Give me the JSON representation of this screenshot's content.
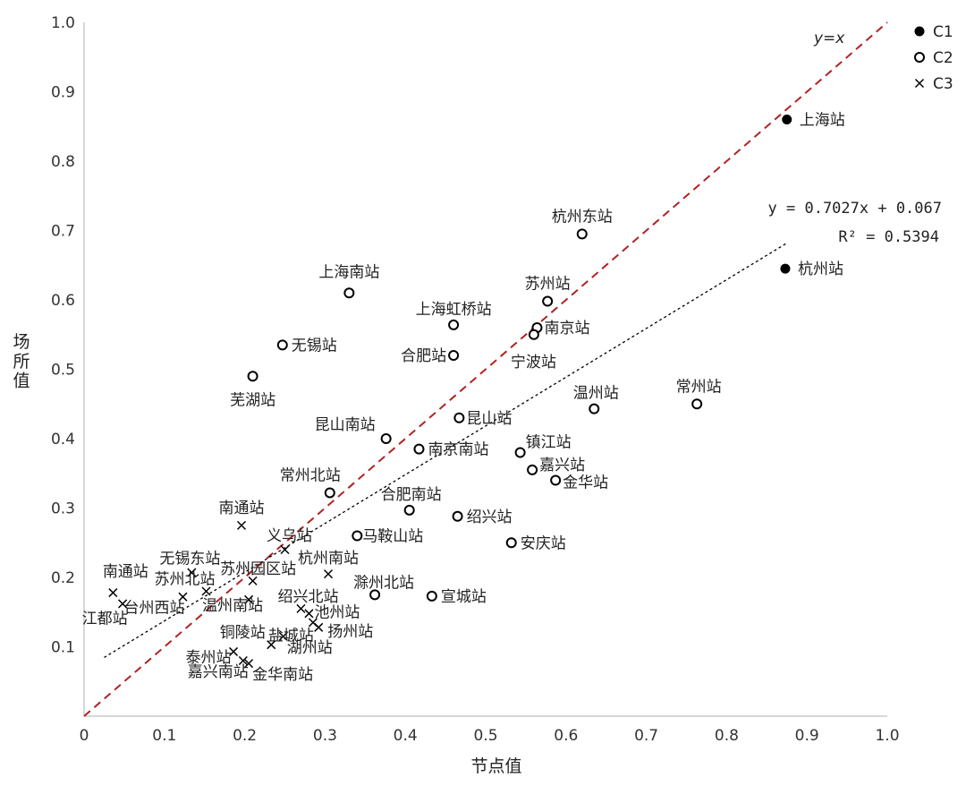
{
  "chart_data": {
    "type": "scatter",
    "title": "",
    "xlabel": "节点值",
    "ylabel": "场所值",
    "xlim": [
      0,
      1.0
    ],
    "ylim": [
      0,
      1.0
    ],
    "x_ticks": [
      "0",
      "0.1",
      "0.2",
      "0.3",
      "0.4",
      "0.5",
      "0.6",
      "0.7",
      "0.8",
      "0.9",
      "1.0"
    ],
    "y_ticks": [
      "0.1",
      "0.2",
      "0.3",
      "0.4",
      "0.5",
      "0.6",
      "0.7",
      "0.8",
      "0.9",
      "1.0"
    ],
    "grid": false,
    "legend_position": "top-right",
    "series": [
      {
        "name": "C1",
        "marker": "filled-circle",
        "points": [
          {
            "label": "上海站",
            "x": 0.875,
            "y": 0.86
          },
          {
            "label": "杭州站",
            "x": 0.873,
            "y": 0.645
          }
        ]
      },
      {
        "name": "C2",
        "marker": "open-circle",
        "points": [
          {
            "label": "杭州东站",
            "x": 0.62,
            "y": 0.695
          },
          {
            "label": "苏州站",
            "x": 0.577,
            "y": 0.598
          },
          {
            "label": "南京站",
            "x": 0.564,
            "y": 0.56
          },
          {
            "label": "宁波站",
            "x": 0.56,
            "y": 0.55
          },
          {
            "label": "上海南站",
            "x": 0.33,
            "y": 0.61
          },
          {
            "label": "上海虹桥站",
            "x": 0.46,
            "y": 0.564
          },
          {
            "label": "合肥站",
            "x": 0.46,
            "y": 0.52
          },
          {
            "label": "无锡站",
            "x": 0.247,
            "y": 0.535
          },
          {
            "label": "芜湖站",
            "x": 0.21,
            "y": 0.49
          },
          {
            "label": "温州站",
            "x": 0.635,
            "y": 0.443
          },
          {
            "label": "常州站",
            "x": 0.763,
            "y": 0.45
          },
          {
            "label": "昆山站",
            "x": 0.467,
            "y": 0.43
          },
          {
            "label": "昆山南站",
            "x": 0.376,
            "y": 0.4
          },
          {
            "label": "南京南站",
            "x": 0.417,
            "y": 0.385
          },
          {
            "label": "镇江站",
            "x": 0.543,
            "y": 0.38
          },
          {
            "label": "嘉兴站",
            "x": 0.558,
            "y": 0.355
          },
          {
            "label": "金华站",
            "x": 0.587,
            "y": 0.34
          },
          {
            "label": "常州北站",
            "x": 0.306,
            "y": 0.322
          },
          {
            "label": "合肥南站",
            "x": 0.405,
            "y": 0.297
          },
          {
            "label": "绍兴站",
            "x": 0.465,
            "y": 0.288
          },
          {
            "label": "马鞍山站",
            "x": 0.34,
            "y": 0.26
          },
          {
            "label": "安庆站",
            "x": 0.532,
            "y": 0.25
          },
          {
            "label": "滁州北站",
            "x": 0.362,
            "y": 0.175
          },
          {
            "label": "宣城站",
            "x": 0.433,
            "y": 0.173
          }
        ]
      },
      {
        "name": "C3",
        "marker": "cross",
        "points": [
          {
            "label": "南通站",
            "x": 0.196,
            "y": 0.275
          },
          {
            "label": "义乌站",
            "x": 0.25,
            "y": 0.24
          },
          {
            "label": "无锡东站",
            "x": 0.134,
            "y": 0.207
          },
          {
            "label": "苏州园区站",
            "x": 0.21,
            "y": 0.195
          },
          {
            "label": "杭州南站",
            "x": 0.304,
            "y": 0.205
          },
          {
            "label": "苏州北站",
            "x": 0.152,
            "y": 0.18
          },
          {
            "label": "南通站",
            "x": 0.036,
            "y": 0.178
          },
          {
            "label": "江都站",
            "x": 0.048,
            "y": 0.162
          },
          {
            "label": "台州西站",
            "x": 0.123,
            "y": 0.172
          },
          {
            "label": "温州南站",
            "x": 0.205,
            "y": 0.168
          },
          {
            "label": "绍兴北站",
            "x": 0.27,
            "y": 0.155
          },
          {
            "label": "池州站",
            "x": 0.28,
            "y": 0.148
          },
          {
            "label": "盐城站",
            "x": 0.285,
            "y": 0.135
          },
          {
            "label": "扬州站",
            "x": 0.292,
            "y": 0.128
          },
          {
            "label": "湖州站",
            "x": 0.248,
            "y": 0.115
          },
          {
            "label": "铜陵站",
            "x": 0.233,
            "y": 0.103
          },
          {
            "label": "泰州站",
            "x": 0.186,
            "y": 0.093
          },
          {
            "label": "嘉兴南站",
            "x": 0.198,
            "y": 0.08
          },
          {
            "label": "金华南站",
            "x": 0.205,
            "y": 0.076
          }
        ]
      }
    ],
    "reference_line": {
      "label": "y=x",
      "color": "#b22222",
      "style": "dashed",
      "from": [
        0,
        0
      ],
      "to": [
        1.0,
        1.0
      ]
    },
    "trendline": {
      "equation": "y = 0.7027x + 0.067",
      "r_squared": "R² = 0.5394",
      "slope": 0.7027,
      "intercept": 0.067,
      "x_range": [
        0.025,
        0.875
      ],
      "color": "#000000",
      "style": "dotted"
    },
    "legend": [
      {
        "label": "C1",
        "marker": "filled-circle"
      },
      {
        "label": "C2",
        "marker": "open-circle"
      },
      {
        "label": "C3",
        "marker": "cross"
      }
    ]
  }
}
